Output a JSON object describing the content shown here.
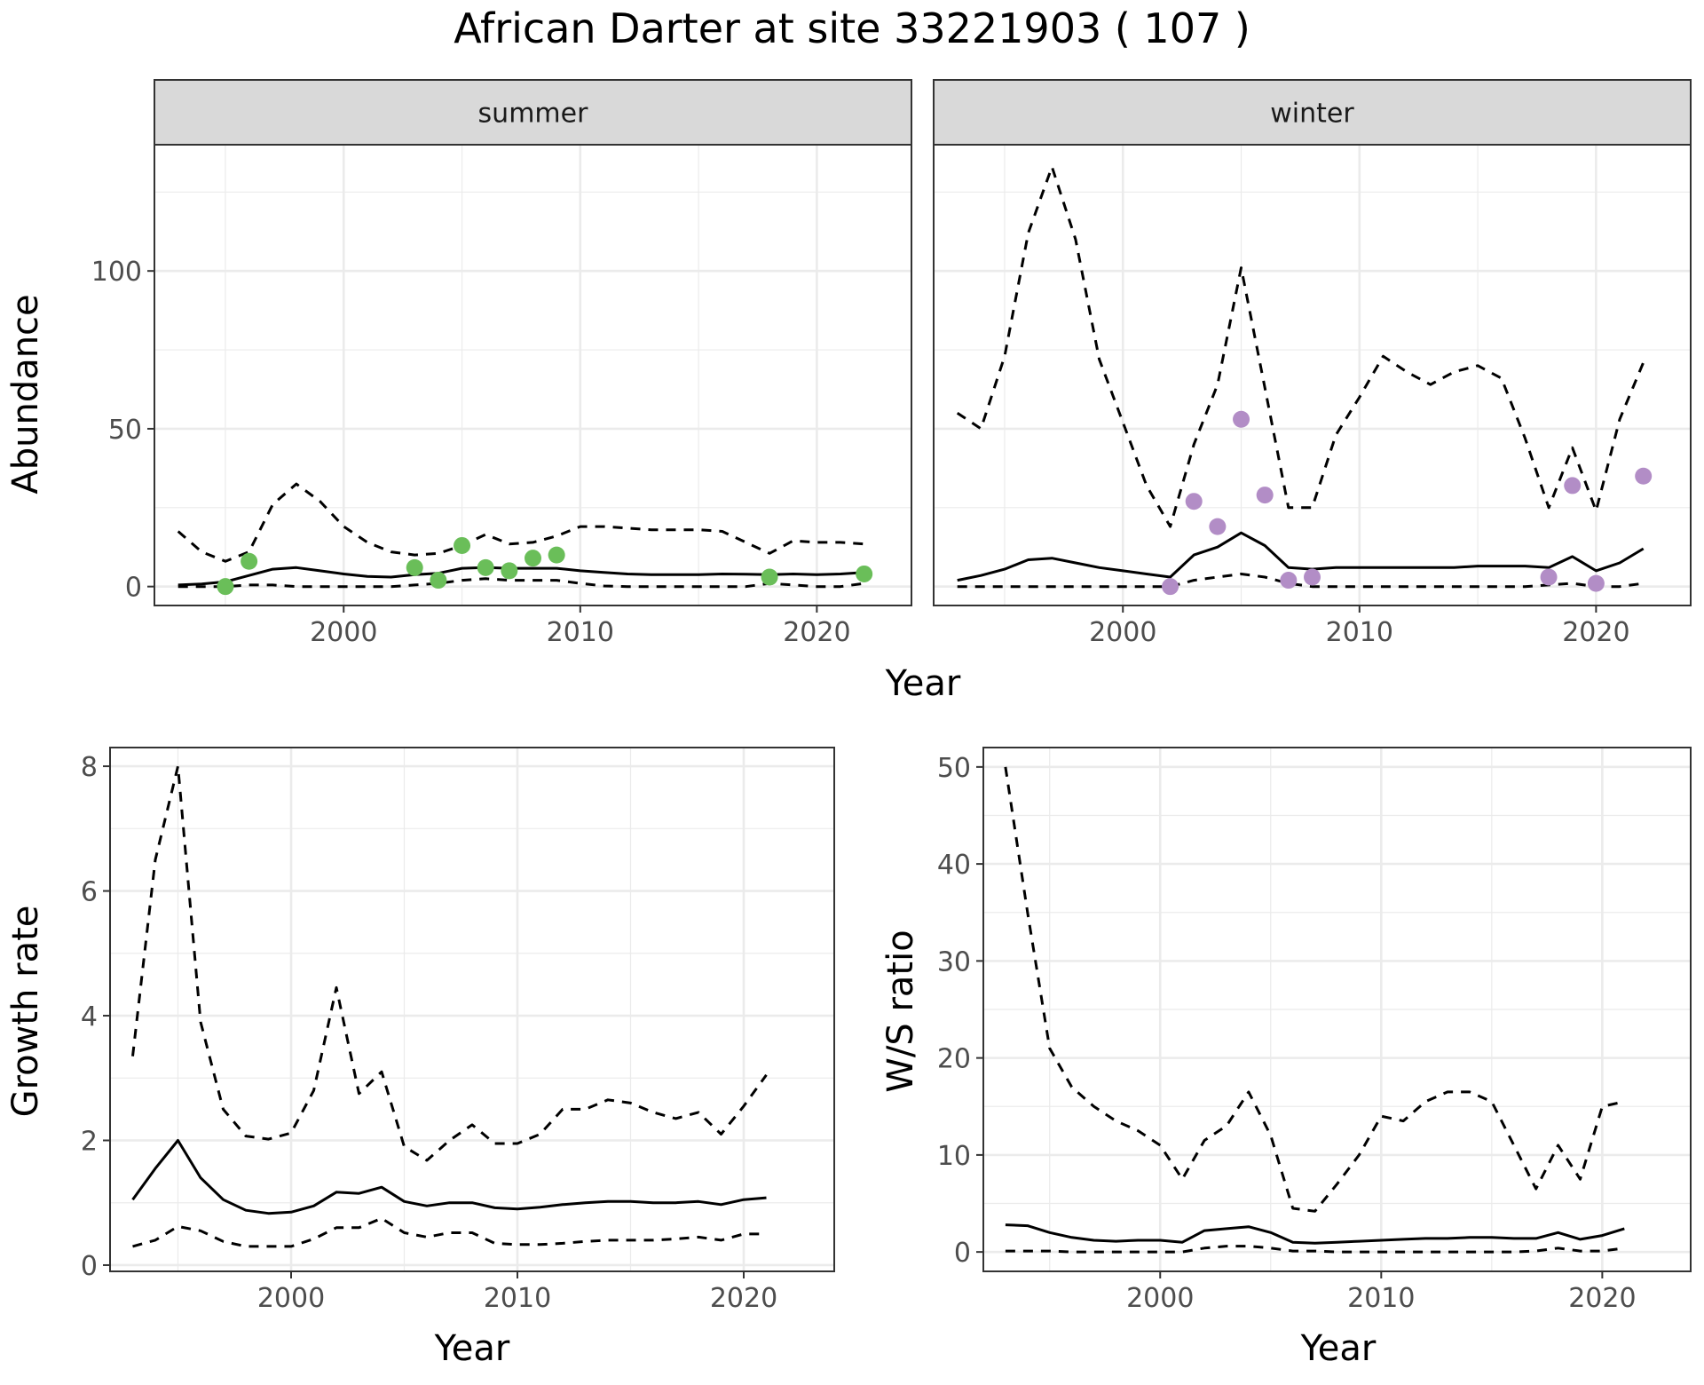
{
  "title": "African Darter at site 33221903 ( 107 )",
  "colors": {
    "summer_points": "#6ABE59",
    "winter_points": "#B28DC6",
    "line": "#000000",
    "strip_fill": "#D9D9D9",
    "grid": "#EBEBEB"
  },
  "chart_data": [
    {
      "type": "line",
      "facet": "summer",
      "xlabel": "Year",
      "ylabel": "Abundance",
      "xlim": [
        1992,
        2024
      ],
      "ylim": [
        -6,
        140
      ],
      "xticks": [
        2000,
        2010,
        2020
      ],
      "yticks": [
        0,
        50,
        100
      ],
      "grid": true,
      "series": [
        {
          "role": "estimate",
          "style": "solid",
          "x": [
            1993,
            1994,
            1995,
            1996,
            1997,
            1998,
            1999,
            2000,
            2001,
            2002,
            2003,
            2004,
            2005,
            2006,
            2007,
            2008,
            2009,
            2010,
            2011,
            2012,
            2013,
            2014,
            2015,
            2016,
            2017,
            2018,
            2019,
            2020,
            2021,
            2022
          ],
          "y": [
            0.5,
            0.8,
            1.5,
            3.5,
            5.5,
            6,
            5,
            4,
            3.2,
            3,
            3.8,
            4.2,
            5.8,
            6,
            5.8,
            5.8,
            5.8,
            5,
            4.5,
            4,
            3.8,
            3.8,
            3.8,
            4,
            3.9,
            3.8,
            4,
            3.8,
            4,
            4.5
          ]
        },
        {
          "role": "upper",
          "style": "dashed",
          "x": [
            1993,
            1994,
            1995,
            1996,
            1997,
            1998,
            1999,
            2000,
            2001,
            2002,
            2003,
            2004,
            2005,
            2006,
            2007,
            2008,
            2009,
            2010,
            2011,
            2012,
            2013,
            2014,
            2015,
            2016,
            2017,
            2018,
            2019,
            2020,
            2021,
            2022
          ],
          "y": [
            17.5,
            11,
            8,
            11,
            26,
            32.5,
            27,
            19,
            14,
            11,
            10,
            10.5,
            13,
            16.5,
            13.5,
            14,
            16,
            19,
            19,
            18.5,
            18,
            18,
            18,
            17.5,
            14,
            10.5,
            14.5,
            14,
            14,
            13.5
          ]
        },
        {
          "role": "lower",
          "style": "dashed",
          "x": [
            1993,
            1994,
            1995,
            1996,
            1997,
            1998,
            1999,
            2000,
            2001,
            2002,
            2003,
            2004,
            2005,
            2006,
            2007,
            2008,
            2009,
            2010,
            2011,
            2012,
            2013,
            2014,
            2015,
            2016,
            2017,
            2018,
            2019,
            2020,
            2021,
            2022
          ],
          "y": [
            0,
            0,
            0,
            0.5,
            0.5,
            0,
            0,
            0,
            0,
            0,
            0.5,
            1,
            2,
            2.5,
            2,
            2,
            2,
            1,
            0.2,
            0,
            0,
            0,
            0,
            0,
            0,
            1,
            0.5,
            0,
            0,
            1
          ]
        },
        {
          "role": "observed",
          "style": "points",
          "color": "#6ABE59",
          "x": [
            1995,
            1996,
            2003,
            2004,
            2005,
            2006,
            2007,
            2008,
            2009,
            2018,
            2022
          ],
          "y": [
            0,
            8,
            6,
            2,
            13,
            6,
            5,
            9,
            10,
            3,
            4
          ]
        }
      ]
    },
    {
      "type": "line",
      "facet": "winter",
      "xlabel": "Year",
      "ylabel": "Abundance",
      "xlim": [
        1992,
        2024
      ],
      "ylim": [
        -6,
        140
      ],
      "xticks": [
        2000,
        2010,
        2020
      ],
      "yticks": [
        0,
        50,
        100
      ],
      "grid": true,
      "series": [
        {
          "role": "estimate",
          "style": "solid",
          "x": [
            1993,
            1994,
            1995,
            1996,
            1997,
            1998,
            1999,
            2000,
            2001,
            2002,
            2003,
            2004,
            2005,
            2006,
            2007,
            2008,
            2009,
            2010,
            2011,
            2012,
            2013,
            2014,
            2015,
            2016,
            2017,
            2018,
            2019,
            2020,
            2021,
            2022
          ],
          "y": [
            2,
            3.5,
            5.5,
            8.5,
            9,
            7.5,
            6,
            5,
            4,
            3,
            10,
            12.5,
            17,
            13,
            6,
            5.5,
            6,
            6,
            6,
            6,
            6,
            6,
            6.5,
            6.5,
            6.5,
            6,
            9.5,
            5,
            7.5,
            12
          ]
        },
        {
          "role": "upper",
          "style": "dashed",
          "x": [
            1993,
            1994,
            1995,
            1996,
            1997,
            1998,
            1999,
            2000,
            2001,
            2002,
            2003,
            2004,
            2005,
            2006,
            2007,
            2008,
            2009,
            2010,
            2011,
            2012,
            2013,
            2014,
            2015,
            2016,
            2017,
            2018,
            2019,
            2020,
            2021,
            2022
          ],
          "y": [
            55,
            50,
            73,
            112,
            133,
            110,
            72,
            52,
            32,
            19,
            45,
            64,
            101,
            63,
            25,
            25,
            48,
            60,
            73,
            68,
            64,
            68,
            70,
            66,
            47,
            25,
            44,
            24,
            53,
            71
          ]
        },
        {
          "role": "lower",
          "style": "dashed",
          "x": [
            1993,
            1994,
            1995,
            1996,
            1997,
            1998,
            1999,
            2000,
            2001,
            2002,
            2003,
            2004,
            2005,
            2006,
            2007,
            2008,
            2009,
            2010,
            2011,
            2012,
            2013,
            2014,
            2015,
            2016,
            2017,
            2018,
            2019,
            2020,
            2021,
            2022
          ],
          "y": [
            0,
            0,
            0,
            0,
            0,
            0,
            0,
            0,
            0,
            0,
            2,
            3,
            4,
            3,
            1,
            0,
            0,
            0,
            0,
            0,
            0,
            0,
            0,
            0,
            0,
            0.5,
            1,
            0,
            0,
            1
          ]
        },
        {
          "role": "observed",
          "style": "points",
          "color": "#B28DC6",
          "x": [
            2002,
            2003,
            2004,
            2005,
            2006,
            2007,
            2008,
            2018,
            2019,
            2020,
            2022
          ],
          "y": [
            0,
            27,
            19,
            53,
            29,
            2,
            3,
            3,
            32,
            1,
            35
          ]
        }
      ]
    },
    {
      "type": "line",
      "xlabel": "Year",
      "ylabel": "Growth rate",
      "xlim": [
        1992,
        2024
      ],
      "ylim": [
        -0.1,
        8.3
      ],
      "xticks": [
        2000,
        2010,
        2020
      ],
      "yticks": [
        0,
        2,
        4,
        6,
        8
      ],
      "grid": true,
      "series": [
        {
          "role": "estimate",
          "style": "solid",
          "x": [
            1993,
            1994,
            1995,
            1996,
            1997,
            1998,
            1999,
            2000,
            2001,
            2002,
            2003,
            2004,
            2005,
            2006,
            2007,
            2008,
            2009,
            2010,
            2011,
            2012,
            2013,
            2014,
            2015,
            2016,
            2017,
            2018,
            2019,
            2020,
            2021
          ],
          "y": [
            1.05,
            1.55,
            2,
            1.4,
            1.05,
            0.88,
            0.83,
            0.85,
            0.95,
            1.17,
            1.15,
            1.25,
            1.02,
            0.95,
            1.0,
            1.0,
            0.92,
            0.9,
            0.93,
            0.97,
            1.0,
            1.02,
            1.02,
            1.0,
            1.0,
            1.02,
            0.97,
            1.05,
            1.08
          ]
        },
        {
          "role": "upper",
          "style": "dashed",
          "x": [
            1993,
            1994,
            1995,
            1996,
            1997,
            1998,
            1999,
            2000,
            2001,
            2002,
            2003,
            2004,
            2005,
            2006,
            2007,
            2008,
            2009,
            2010,
            2011,
            2012,
            2013,
            2014,
            2015,
            2016,
            2017,
            2018,
            2019,
            2020,
            2021
          ],
          "y": [
            3.35,
            6.5,
            8,
            3.9,
            2.5,
            2.07,
            2.02,
            2.12,
            2.8,
            4.45,
            2.75,
            3.1,
            1.9,
            1.68,
            2.0,
            2.25,
            1.95,
            1.95,
            2.1,
            2.5,
            2.5,
            2.65,
            2.6,
            2.45,
            2.35,
            2.45,
            2.1,
            2.55,
            3.05
          ]
        },
        {
          "role": "lower",
          "style": "dashed",
          "x": [
            1993,
            1994,
            1995,
            1996,
            1997,
            1998,
            1999,
            2000,
            2001,
            2002,
            2003,
            2004,
            2005,
            2006,
            2007,
            2008,
            2009,
            2010,
            2011,
            2012,
            2013,
            2014,
            2015,
            2016,
            2017,
            2018,
            2019,
            2020,
            2021
          ],
          "y": [
            0.3,
            0.4,
            0.62,
            0.55,
            0.38,
            0.3,
            0.3,
            0.3,
            0.42,
            0.6,
            0.6,
            0.75,
            0.52,
            0.45,
            0.52,
            0.52,
            0.35,
            0.33,
            0.33,
            0.35,
            0.38,
            0.4,
            0.4,
            0.4,
            0.42,
            0.45,
            0.4,
            0.5,
            0.5
          ]
        }
      ]
    },
    {
      "type": "line",
      "xlabel": "Year",
      "ylabel": "W/S ratio",
      "xlim": [
        1992,
        2024
      ],
      "ylim": [
        -2,
        52
      ],
      "xticks": [
        2000,
        2010,
        2020
      ],
      "yticks": [
        0,
        10,
        20,
        30,
        40,
        50
      ],
      "grid": true,
      "series": [
        {
          "role": "estimate",
          "style": "solid",
          "x": [
            1993,
            1994,
            1995,
            1996,
            1997,
            1998,
            1999,
            2000,
            2001,
            2002,
            2003,
            2004,
            2005,
            2006,
            2007,
            2008,
            2009,
            2010,
            2011,
            2012,
            2013,
            2014,
            2015,
            2016,
            2017,
            2018,
            2019,
            2020,
            2021
          ],
          "y": [
            2.8,
            2.7,
            2.0,
            1.5,
            1.2,
            1.1,
            1.2,
            1.2,
            1.0,
            2.2,
            2.4,
            2.6,
            2.0,
            1.0,
            0.9,
            1.0,
            1.1,
            1.2,
            1.3,
            1.4,
            1.4,
            1.5,
            1.5,
            1.4,
            1.4,
            2.0,
            1.3,
            1.7,
            2.4
          ]
        },
        {
          "role": "upper",
          "style": "dashed",
          "x": [
            1993,
            1994,
            1995,
            1996,
            1997,
            1998,
            1999,
            2000,
            2001,
            2002,
            2003,
            2004,
            2005,
            2006,
            2007,
            2008,
            2009,
            2010,
            2011,
            2012,
            2013,
            2014,
            2015,
            2016,
            2017,
            2018,
            2019,
            2020,
            2021
          ],
          "y": [
            50,
            35,
            21,
            17,
            15,
            13.5,
            12.5,
            11,
            7.5,
            11.5,
            13,
            16.5,
            12,
            4.5,
            4.2,
            7,
            10,
            14,
            13.5,
            15.5,
            16.5,
            16.5,
            15.5,
            11,
            6.5,
            11,
            7.5,
            15,
            15.5
          ]
        },
        {
          "role": "lower",
          "style": "dashed",
          "x": [
            1993,
            1994,
            1995,
            1996,
            1997,
            1998,
            1999,
            2000,
            2001,
            2002,
            2003,
            2004,
            2005,
            2006,
            2007,
            2008,
            2009,
            2010,
            2011,
            2012,
            2013,
            2014,
            2015,
            2016,
            2017,
            2018,
            2019,
            2020,
            2021
          ],
          "y": [
            0.1,
            0.1,
            0.1,
            0,
            0,
            0,
            0,
            0,
            0,
            0.4,
            0.6,
            0.6,
            0.4,
            0.1,
            0.1,
            0,
            0,
            0,
            0,
            0,
            0,
            0,
            0,
            0,
            0.1,
            0.4,
            0.1,
            0.1,
            0.4
          ]
        }
      ]
    }
  ]
}
